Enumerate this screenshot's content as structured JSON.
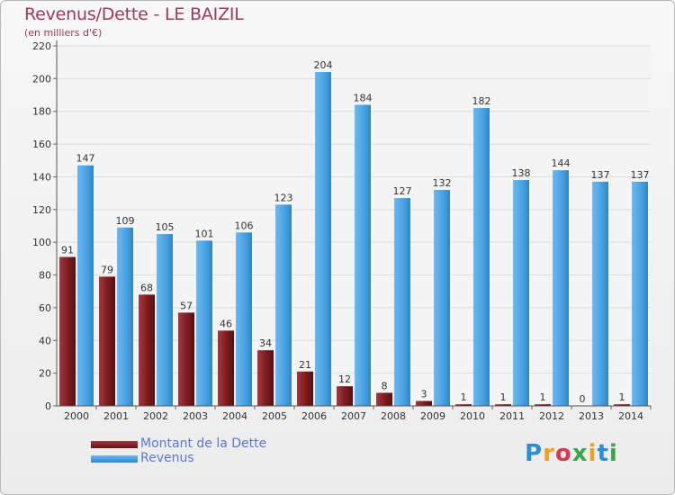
{
  "title": "Revenus/Dette - LE BAIZIL",
  "subtitle": "(en milliers d'€)",
  "colors": {
    "dette": "#7a1a1e",
    "dette_light": "#b04850",
    "revenus": "#3e98dc",
    "revenus_light": "#6ab8ee",
    "title": "#9a3a5c",
    "legend_text": "#5a78e0",
    "grid": "#dcdcdc"
  },
  "logo": {
    "text": "Proxiti",
    "icon": "proxiti-logo"
  },
  "chart_data": {
    "type": "bar",
    "title": "Revenus/Dette - LE BAIZIL",
    "subtitle": "(en milliers d'€)",
    "xlabel": "",
    "ylabel": "",
    "categories": [
      "2000",
      "2001",
      "2002",
      "2003",
      "2004",
      "2005",
      "2006",
      "2007",
      "2008",
      "2009",
      "2010",
      "2011",
      "2012",
      "2013",
      "2014"
    ],
    "series": [
      {
        "name": "Montant de la Dette",
        "values": [
          91,
          79,
          68,
          57,
          46,
          34,
          21,
          12,
          8,
          3,
          1,
          1,
          1,
          0,
          1
        ]
      },
      {
        "name": "Revenus",
        "values": [
          147,
          109,
          105,
          101,
          106,
          123,
          204,
          184,
          127,
          132,
          182,
          138,
          144,
          137,
          137
        ]
      }
    ],
    "ylim": [
      0,
      220
    ],
    "yticks": [
      0,
      20,
      40,
      60,
      80,
      100,
      120,
      140,
      160,
      180,
      200,
      220
    ],
    "grid": true,
    "legend_position": "bottom-left"
  }
}
